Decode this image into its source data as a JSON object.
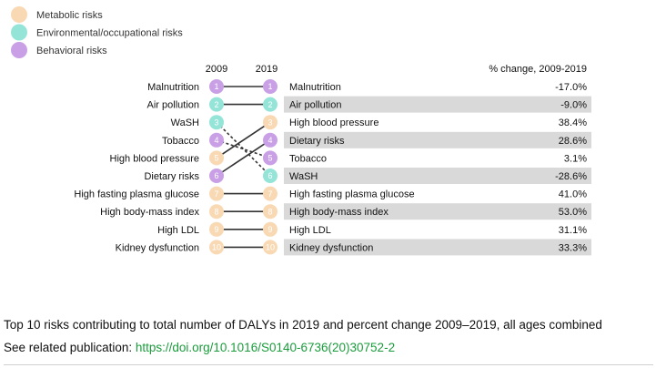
{
  "colors": {
    "metabolic": "#f9d9b4",
    "environmental": "#95e4d8",
    "behavioral": "#c9a0e6",
    "row_shade": "#d9d9d9",
    "link": "#1a9c3c"
  },
  "caption": "Top 10 risks contributing to total number of DALYs in 2019 and percent change 2009–2019, all ages combined",
  "related": {
    "prefix": "See related publication: ",
    "link_text": "https://doi.org/10.1016/S0140-6736(20)30752-2"
  },
  "chart_data": {
    "type": "table",
    "legend": [
      {
        "label": "Metabolic risks",
        "category": "metabolic"
      },
      {
        "label": "Environmental/occupational risks",
        "category": "environmental"
      },
      {
        "label": "Behavioral risks",
        "category": "behavioral"
      }
    ],
    "year_left": "2009",
    "year_right": "2019",
    "pct_header": "% change, 2009-2019",
    "left_ranking": [
      {
        "name": "Malnutrition",
        "rank": 1,
        "category": "behavioral"
      },
      {
        "name": "Air pollution",
        "rank": 2,
        "category": "environmental"
      },
      {
        "name": "WaSH",
        "rank": 3,
        "category": "environmental"
      },
      {
        "name": "Tobacco",
        "rank": 4,
        "category": "behavioral"
      },
      {
        "name": "High blood pressure",
        "rank": 5,
        "category": "metabolic"
      },
      {
        "name": "Dietary risks",
        "rank": 6,
        "category": "behavioral"
      },
      {
        "name": "High fasting plasma glucose",
        "rank": 7,
        "category": "metabolic"
      },
      {
        "name": "High body-mass index",
        "rank": 8,
        "category": "metabolic"
      },
      {
        "name": "High LDL",
        "rank": 9,
        "category": "metabolic"
      },
      {
        "name": "Kidney dysfunction",
        "rank": 10,
        "category": "metabolic"
      }
    ],
    "right_ranking": [
      {
        "name": "Malnutrition",
        "rank": 1,
        "category": "behavioral",
        "pct_change": "-17.0%",
        "shaded": false
      },
      {
        "name": "Air pollution",
        "rank": 2,
        "category": "environmental",
        "pct_change": "-9.0%",
        "shaded": true
      },
      {
        "name": "High blood pressure",
        "rank": 3,
        "category": "metabolic",
        "pct_change": "38.4%",
        "shaded": false
      },
      {
        "name": "Dietary risks",
        "rank": 4,
        "category": "behavioral",
        "pct_change": "28.6%",
        "shaded": true
      },
      {
        "name": "Tobacco",
        "rank": 5,
        "category": "behavioral",
        "pct_change": "3.1%",
        "shaded": false
      },
      {
        "name": "WaSH",
        "rank": 6,
        "category": "environmental",
        "pct_change": "-28.6%",
        "shaded": true
      },
      {
        "name": "High fasting plasma glucose",
        "rank": 7,
        "category": "metabolic",
        "pct_change": "41.0%",
        "shaded": false
      },
      {
        "name": "High body-mass index",
        "rank": 8,
        "category": "metabolic",
        "pct_change": "53.0%",
        "shaded": true
      },
      {
        "name": "High LDL",
        "rank": 9,
        "category": "metabolic",
        "pct_change": "31.1%",
        "shaded": false
      },
      {
        "name": "Kidney dysfunction",
        "rank": 10,
        "category": "metabolic",
        "pct_change": "33.3%",
        "shaded": true
      }
    ],
    "connections": [
      {
        "from": 1,
        "to": 1,
        "style": "solid"
      },
      {
        "from": 2,
        "to": 2,
        "style": "solid"
      },
      {
        "from": 3,
        "to": 6,
        "style": "dashed"
      },
      {
        "from": 4,
        "to": 5,
        "style": "dashed"
      },
      {
        "from": 5,
        "to": 3,
        "style": "solid"
      },
      {
        "from": 6,
        "to": 4,
        "style": "solid"
      },
      {
        "from": 7,
        "to": 7,
        "style": "solid"
      },
      {
        "from": 8,
        "to": 8,
        "style": "solid"
      },
      {
        "from": 9,
        "to": 9,
        "style": "solid"
      },
      {
        "from": 10,
        "to": 10,
        "style": "solid"
      }
    ]
  }
}
